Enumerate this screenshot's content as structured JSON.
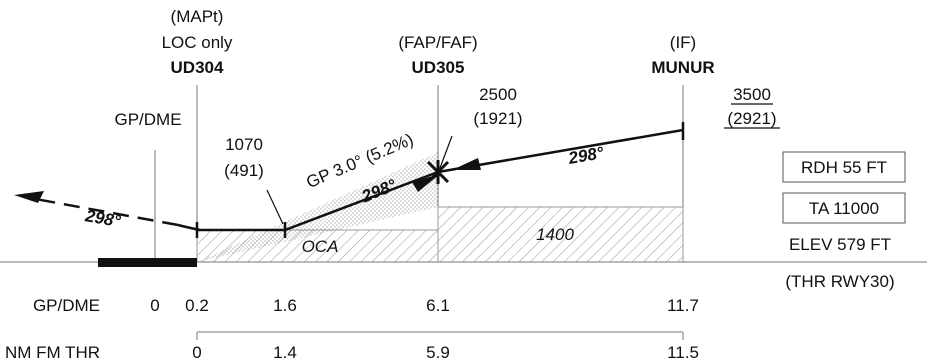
{
  "fixes": {
    "mapt": {
      "role": "(MAPt)",
      "note": "LOC only",
      "name": "UD304"
    },
    "fap": {
      "role": "(FAP/FAF)",
      "name": "UD305"
    },
    "iff": {
      "role": "(IF)",
      "name": "MUNUR"
    }
  },
  "gpdme_fix_label": "GP/DME",
  "altitudes": {
    "alt_1070": "1070",
    "hgt_491": "(491)",
    "alt_2500": "2500",
    "hgt_1921": "(1921)",
    "alt_3500": "3500",
    "hgt_2921": "(2921)"
  },
  "glidepath": "GP 3.0° (5.2%)",
  "tracks": {
    "missed": "298°",
    "final": "298°",
    "intermediate": "298°"
  },
  "oca_label": "OCA",
  "msa_value": "1400",
  "info": {
    "rdh": "RDH 55 FT",
    "ta": "TA 11000",
    "elev": "ELEV 579 FT",
    "thr": "(THR RWY30)"
  },
  "scales": {
    "gpdme_label": "GP/DME",
    "gpdme_values": [
      "0",
      "0.2",
      "1.6",
      "6.1",
      "11.7"
    ],
    "thr_label": "NM FM THR",
    "thr_values": [
      "0",
      "1.4",
      "5.9",
      "11.5"
    ]
  },
  "colors": {
    "ink": "#111111",
    "grid": "#777777",
    "hatch": "#999999"
  }
}
